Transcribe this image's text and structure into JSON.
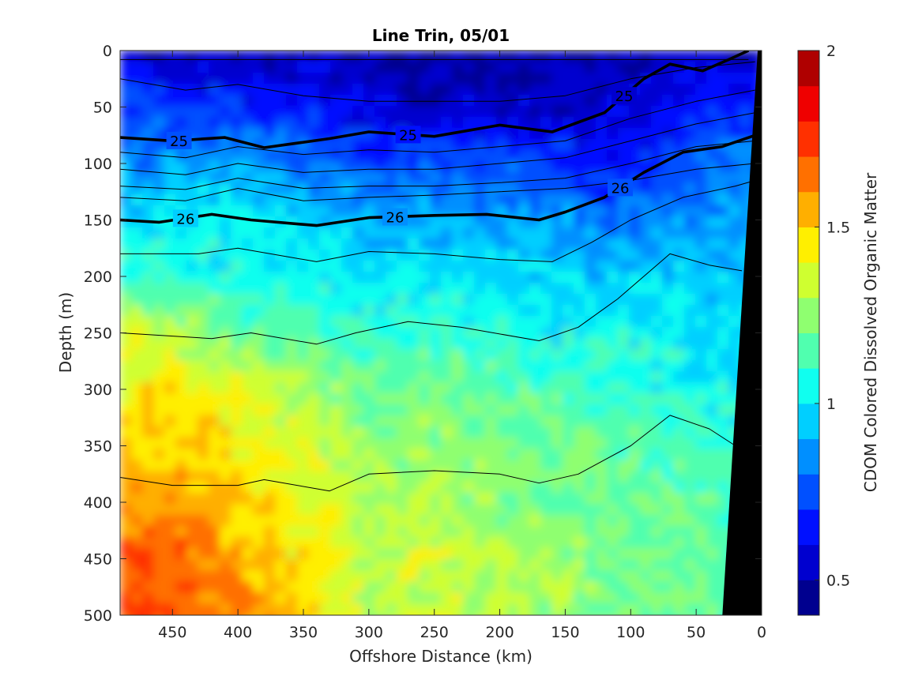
{
  "chart_data": {
    "type": "heatmap",
    "title": "Line Trin, 05/01",
    "xlabel": "Offshore Distance (km)",
    "ylabel": "Depth (m)",
    "colorbar_label": "CDOM Colored Dissolved Organic Matter",
    "xlim": [
      490,
      0
    ],
    "ylim": [
      0,
      500
    ],
    "x_reversed": true,
    "y_reversed": true,
    "x_ticks": [
      450,
      400,
      350,
      300,
      250,
      200,
      150,
      100,
      50,
      0
    ],
    "x_tick_labels": [
      "450",
      "400",
      "350",
      "300",
      "250",
      "200",
      "150",
      "100",
      "50",
      "0"
    ],
    "y_ticks": [
      0,
      50,
      100,
      150,
      200,
      250,
      300,
      350,
      400,
      450,
      500
    ],
    "y_tick_labels": [
      "0",
      "50",
      "100",
      "150",
      "200",
      "250",
      "300",
      "350",
      "400",
      "450",
      "500"
    ],
    "colorbar_range": [
      0.4,
      2.0
    ],
    "colorbar_ticks": [
      0.5,
      1,
      1.5,
      2
    ],
    "colorbar_tick_labels": [
      "0.5",
      "1",
      "1.5",
      "2"
    ],
    "colorbar_colors": [
      "#00008f",
      "#0000cf",
      "#0010ff",
      "#0050ff",
      "#008fff",
      "#00cfff",
      "#10ffef",
      "#50ffaf",
      "#8fff70",
      "#cfff30",
      "#ffef00",
      "#ffaf00",
      "#ff7000",
      "#ff3000",
      "#ef0000",
      "#af0000"
    ],
    "field": {
      "depths": [
        0,
        50,
        100,
        150,
        200,
        250,
        300,
        350,
        400,
        450,
        500
      ],
      "distances": [
        490,
        450,
        400,
        350,
        300,
        250,
        200,
        150,
        100,
        50,
        20
      ],
      "values": [
        [
          0.55,
          0.5,
          0.5,
          0.5,
          0.5,
          0.45,
          0.5,
          0.5,
          0.5,
          0.55,
          0.55
        ],
        [
          0.75,
          0.7,
          0.7,
          0.65,
          0.6,
          0.55,
          0.55,
          0.55,
          0.55,
          0.65,
          0.7
        ],
        [
          0.85,
          0.85,
          0.9,
          0.8,
          0.75,
          0.75,
          0.75,
          0.7,
          0.65,
          0.75,
          0.8
        ],
        [
          1.0,
          1.0,
          1.0,
          0.95,
          0.9,
          0.9,
          0.9,
          0.85,
          0.8,
          0.85,
          0.9
        ],
        [
          1.15,
          1.1,
          1.05,
          1.05,
          1.0,
          1.0,
          1.0,
          0.95,
          0.95,
          0.95,
          0.95
        ],
        [
          1.35,
          1.3,
          1.2,
          1.15,
          1.1,
          1.1,
          1.1,
          1.05,
          1.05,
          1.0,
          1.0
        ],
        [
          1.45,
          1.45,
          1.4,
          1.3,
          1.2,
          1.2,
          1.15,
          1.15,
          1.1,
          1.05,
          1.05
        ],
        [
          1.5,
          1.5,
          1.45,
          1.35,
          1.25,
          1.25,
          1.2,
          1.2,
          1.15,
          1.1,
          1.1
        ],
        [
          1.6,
          1.6,
          1.5,
          1.4,
          1.3,
          1.3,
          1.25,
          1.2,
          1.2,
          1.15,
          1.1
        ],
        [
          1.7,
          1.7,
          1.55,
          1.45,
          1.3,
          1.35,
          1.3,
          1.25,
          1.2,
          1.2,
          1.15
        ],
        [
          1.7,
          1.7,
          1.6,
          1.5,
          1.35,
          1.35,
          1.3,
          1.25,
          1.2,
          1.2,
          1.15
        ]
      ]
    },
    "isopycnals": [
      {
        "label": "",
        "bold": false,
        "points": [
          [
            490,
            8
          ],
          [
            10,
            8
          ]
        ]
      },
      {
        "label": "",
        "bold": false,
        "points": [
          [
            490,
            25
          ],
          [
            440,
            35
          ],
          [
            400,
            30
          ],
          [
            350,
            40
          ],
          [
            300,
            45
          ],
          [
            250,
            45
          ],
          [
            200,
            45
          ],
          [
            150,
            40
          ],
          [
            100,
            25
          ],
          [
            50,
            15
          ],
          [
            5,
            10
          ]
        ]
      },
      {
        "label": "25",
        "bold": true,
        "label_x": [
          445,
          270,
          105
        ],
        "points": [
          [
            490,
            77
          ],
          [
            450,
            80
          ],
          [
            410,
            77
          ],
          [
            380,
            86
          ],
          [
            330,
            78
          ],
          [
            300,
            72
          ],
          [
            250,
            76
          ],
          [
            200,
            66
          ],
          [
            160,
            72
          ],
          [
            120,
            55
          ],
          [
            90,
            25
          ],
          [
            70,
            12
          ],
          [
            45,
            18
          ],
          [
            25,
            8
          ],
          [
            10,
            0
          ]
        ]
      },
      {
        "label": "",
        "bold": false,
        "points": [
          [
            490,
            90
          ],
          [
            440,
            95
          ],
          [
            400,
            85
          ],
          [
            350,
            92
          ],
          [
            300,
            88
          ],
          [
            250,
            90
          ],
          [
            200,
            85
          ],
          [
            150,
            80
          ],
          [
            100,
            60
          ],
          [
            50,
            45
          ],
          [
            5,
            35
          ]
        ]
      },
      {
        "label": "",
        "bold": false,
        "points": [
          [
            490,
            105
          ],
          [
            440,
            110
          ],
          [
            400,
            100
          ],
          [
            350,
            108
          ],
          [
            300,
            105
          ],
          [
            250,
            105
          ],
          [
            200,
            100
          ],
          [
            150,
            95
          ],
          [
            100,
            80
          ],
          [
            50,
            65
          ],
          [
            5,
            55
          ]
        ]
      },
      {
        "label": "",
        "bold": false,
        "points": [
          [
            490,
            120
          ],
          [
            440,
            123
          ],
          [
            400,
            113
          ],
          [
            350,
            122
          ],
          [
            300,
            120
          ],
          [
            250,
            120
          ],
          [
            200,
            117
          ],
          [
            150,
            113
          ],
          [
            100,
            100
          ],
          [
            50,
            85
          ],
          [
            5,
            80
          ]
        ]
      },
      {
        "label": "",
        "bold": false,
        "points": [
          [
            490,
            130
          ],
          [
            440,
            133
          ],
          [
            400,
            122
          ],
          [
            350,
            133
          ],
          [
            300,
            130
          ],
          [
            250,
            128
          ],
          [
            200,
            125
          ],
          [
            150,
            122
          ],
          [
            100,
            115
          ],
          [
            50,
            105
          ],
          [
            5,
            100
          ]
        ]
      },
      {
        "label": "26",
        "bold": true,
        "label_x": [
          440,
          280,
          108
        ],
        "points": [
          [
            490,
            150
          ],
          [
            460,
            152
          ],
          [
            420,
            145
          ],
          [
            390,
            150
          ],
          [
            340,
            155
          ],
          [
            300,
            148
          ],
          [
            250,
            146
          ],
          [
            210,
            145
          ],
          [
            170,
            150
          ],
          [
            150,
            143
          ],
          [
            120,
            130
          ],
          [
            90,
            108
          ],
          [
            60,
            90
          ],
          [
            30,
            85
          ],
          [
            5,
            75
          ]
        ]
      },
      {
        "label": "",
        "bold": false,
        "points": [
          [
            490,
            180
          ],
          [
            430,
            180
          ],
          [
            400,
            175
          ],
          [
            340,
            187
          ],
          [
            300,
            178
          ],
          [
            250,
            180
          ],
          [
            200,
            185
          ],
          [
            160,
            187
          ],
          [
            130,
            170
          ],
          [
            100,
            150
          ],
          [
            60,
            130
          ],
          [
            20,
            120
          ],
          [
            5,
            115
          ]
        ]
      },
      {
        "label": "",
        "bold": false,
        "points": [
          [
            490,
            250
          ],
          [
            420,
            255
          ],
          [
            390,
            250
          ],
          [
            340,
            260
          ],
          [
            310,
            250
          ],
          [
            270,
            240
          ],
          [
            230,
            245
          ],
          [
            170,
            257
          ],
          [
            140,
            245
          ],
          [
            110,
            220
          ],
          [
            70,
            180
          ],
          [
            40,
            190
          ],
          [
            15,
            195
          ]
        ]
      },
      {
        "label": "",
        "bold": false,
        "points": [
          [
            490,
            378
          ],
          [
            450,
            385
          ],
          [
            400,
            385
          ],
          [
            380,
            380
          ],
          [
            330,
            390
          ],
          [
            300,
            375
          ],
          [
            250,
            372
          ],
          [
            200,
            375
          ],
          [
            170,
            383
          ],
          [
            140,
            375
          ],
          [
            100,
            350
          ],
          [
            70,
            323
          ],
          [
            40,
            335
          ],
          [
            20,
            350
          ]
        ]
      }
    ],
    "seafloor_color": "#000000"
  }
}
